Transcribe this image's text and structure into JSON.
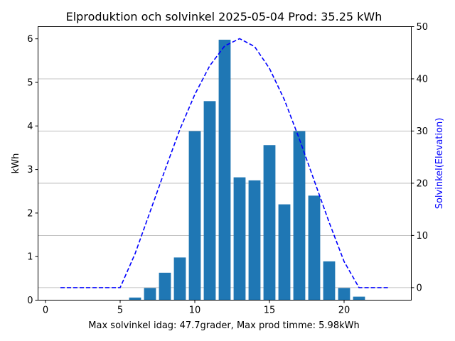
{
  "chart_data": {
    "type": "bar",
    "title": "Elproduktion och solvinkel 2025-05-04 Prod: 35.25 kWh",
    "xlabel": "Max solvinkel idag: 47.7grader, Max prod timme: 5.98kWh",
    "ylabel": "kWh",
    "y2label": "Solvinkel(Elevation)",
    "xlim": [
      -0.5,
      24.5
    ],
    "ylim": [
      0,
      6.28
    ],
    "y2lim": [
      -2.4,
      50
    ],
    "xticks": [
      0,
      5,
      10,
      15,
      20
    ],
    "yticks": [
      0,
      1,
      2,
      3,
      4,
      5,
      6
    ],
    "y2ticks": [
      0,
      10,
      20,
      30,
      40,
      50
    ],
    "grid": "horizontal lines at right-axis ticks",
    "legend": "none",
    "bar_color": "#1f77b4",
    "line_color": "#0000ff",
    "bars": {
      "x": [
        6,
        7,
        8,
        9,
        10,
        11,
        12,
        13,
        14,
        15,
        16,
        17,
        18,
        19,
        20,
        21
      ],
      "values": [
        0.06,
        0.28,
        0.63,
        0.98,
        3.88,
        4.57,
        5.98,
        2.82,
        2.75,
        3.56,
        2.2,
        3.88,
        2.4,
        0.89,
        0.28,
        0.08
      ]
    },
    "elevation": {
      "x": [
        1,
        2,
        3,
        4,
        5,
        6,
        7,
        8,
        9,
        10,
        11,
        12,
        13,
        14,
        15,
        16,
        17,
        18,
        19,
        20,
        21,
        22,
        23
      ],
      "values": [
        0,
        0,
        0,
        0,
        0,
        6.5,
        14.5,
        22.5,
        30.3,
        37,
        42.5,
        46.3,
        47.7,
        46.2,
        42,
        36,
        28.5,
        20.5,
        12.5,
        5,
        0,
        0,
        0
      ]
    }
  }
}
